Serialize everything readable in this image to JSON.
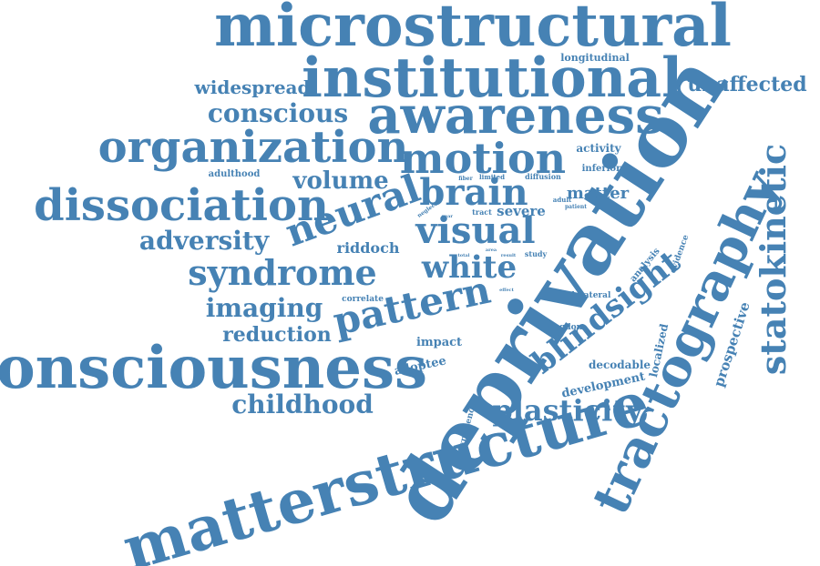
{
  "word_cloud": {
    "color": "#4682b4",
    "words": [
      {
        "text": "deprivation",
        "weight": 100
      },
      {
        "text": "matterstructure",
        "weight": 78
      },
      {
        "text": "consciousness",
        "weight": 72
      },
      {
        "text": "microstructural",
        "weight": 70
      },
      {
        "text": "institutional",
        "weight": 68
      },
      {
        "text": "awareness",
        "weight": 64
      },
      {
        "text": "tractography",
        "weight": 63
      },
      {
        "text": "organization",
        "weight": 55
      },
      {
        "text": "motion",
        "weight": 52
      },
      {
        "text": "dissociation",
        "weight": 52
      },
      {
        "text": "neural",
        "weight": 48
      },
      {
        "text": "brain",
        "weight": 44
      },
      {
        "text": "visual",
        "weight": 44
      },
      {
        "text": "statokinetic",
        "weight": 42
      },
      {
        "text": "syndrome",
        "weight": 42
      },
      {
        "text": "white",
        "weight": 38
      },
      {
        "text": "blindsight",
        "weight": 40
      },
      {
        "text": "pattern",
        "weight": 46
      },
      {
        "text": "plasticity",
        "weight": 34
      },
      {
        "text": "childhood",
        "weight": 30
      },
      {
        "text": "conscious",
        "weight": 30
      },
      {
        "text": "adversity",
        "weight": 30
      },
      {
        "text": "volume",
        "weight": 28
      },
      {
        "text": "imaging",
        "weight": 30
      },
      {
        "text": "reduction",
        "weight": 24
      },
      {
        "text": "widespread",
        "weight": 22
      },
      {
        "text": "unaffected",
        "weight": 24
      },
      {
        "text": "matter",
        "weight": 20
      },
      {
        "text": "riddoch",
        "weight": 18
      },
      {
        "text": "severe",
        "weight": 16
      },
      {
        "text": "prospective",
        "weight": 16
      },
      {
        "text": "impact",
        "weight": 14
      },
      {
        "text": "adoptee",
        "weight": 14
      },
      {
        "text": "development",
        "weight": 14
      },
      {
        "text": "localized",
        "weight": 13
      },
      {
        "text": "decodable",
        "weight": 13
      },
      {
        "text": "activity",
        "weight": 13
      },
      {
        "text": "longitudinal",
        "weight": 12
      },
      {
        "text": "adulthood",
        "weight": 11
      },
      {
        "text": "inferior",
        "weight": 11
      },
      {
        "text": "analysis",
        "weight": 11
      },
      {
        "text": "evidence",
        "weight": 10
      },
      {
        "text": "experience",
        "weight": 10
      },
      {
        "text": "bilateral",
        "weight": 10
      },
      {
        "text": "correlate",
        "weight": 10
      },
      {
        "text": "kingdom",
        "weight": 10
      },
      {
        "text": "study",
        "weight": 9
      },
      {
        "text": "diffusion",
        "weight": 9
      },
      {
        "text": "tract",
        "weight": 9
      },
      {
        "text": "limited",
        "weight": 8
      },
      {
        "text": "fiber",
        "weight": 7
      },
      {
        "text": "neglect",
        "weight": 7
      },
      {
        "text": "adult",
        "weight": 8
      },
      {
        "text": "patient",
        "weight": 7
      },
      {
        "text": "year",
        "weight": 6
      },
      {
        "text": "total",
        "weight": 6
      },
      {
        "text": "area",
        "weight": 6
      },
      {
        "text": "result",
        "weight": 6
      },
      {
        "text": "effect",
        "weight": 6
      }
    ]
  }
}
